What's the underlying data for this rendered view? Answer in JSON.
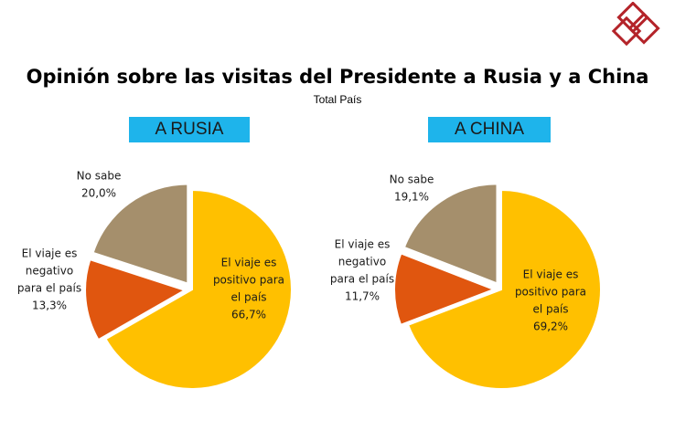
{
  "title": "Opinión sobre las visitas del Presidente a Rusia y a China",
  "subtitle": "Total País",
  "colors": {
    "positive": "#FFC000",
    "negative": "#E0560F",
    "no_sabe": "#A58F6C",
    "label_bg": "#1EB4EB",
    "logo": "#B4242A"
  },
  "chart_data": [
    {
      "type": "pie",
      "title": "A RUSIA",
      "slices": [
        {
          "label_lines": [
            "El viaje es",
            "positivo para",
            "el país",
            "66,7%"
          ],
          "value": 66.7,
          "color_key": "positive",
          "exploded": false
        },
        {
          "label_lines": [
            "El viaje es",
            "negativo",
            "para el país",
            "13,3%"
          ],
          "value": 13.3,
          "color_key": "negative",
          "exploded": true
        },
        {
          "label_lines": [
            "No sabe",
            "20,0%"
          ],
          "value": 20.0,
          "color_key": "no_sabe",
          "exploded": true
        }
      ]
    },
    {
      "type": "pie",
      "title": "A CHINA",
      "slices": [
        {
          "label_lines": [
            "El viaje es",
            "positivo para",
            "el país",
            "69,2%"
          ],
          "value": 69.2,
          "color_key": "positive",
          "exploded": false
        },
        {
          "label_lines": [
            "El viaje es",
            "negativo",
            "para el país",
            "11,7%"
          ],
          "value": 11.7,
          "color_key": "negative",
          "exploded": true
        },
        {
          "label_lines": [
            "No sabe",
            "19,1%"
          ],
          "value": 19.1,
          "color_key": "no_sabe",
          "exploded": true
        }
      ]
    }
  ]
}
